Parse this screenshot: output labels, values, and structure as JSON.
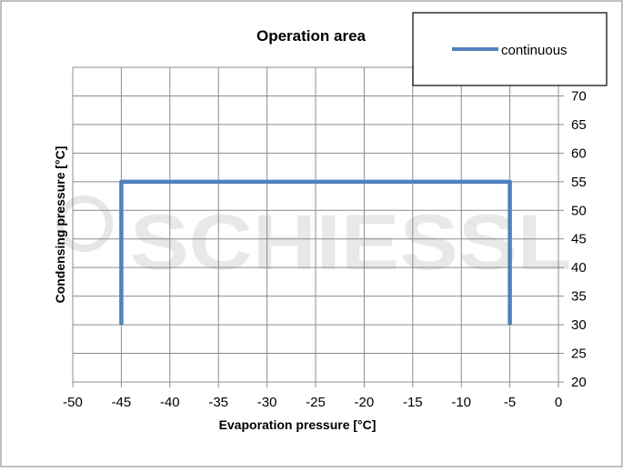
{
  "chart_data": {
    "type": "line",
    "title": "Operation area",
    "xlabel": "Evaporation pressure [°C]",
    "ylabel": "Condensing pressure [°C]",
    "xlim": [
      -50,
      0
    ],
    "ylim": [
      20,
      75
    ],
    "x_ticks": [
      -50,
      -45,
      -40,
      -35,
      -30,
      -25,
      -20,
      -15,
      -10,
      -5,
      0
    ],
    "x_tick_labels": [
      "-50",
      "-45",
      "-40",
      "-35",
      "-30",
      "-25",
      "-20",
      "-15",
      "-10",
      "-5",
      "0"
    ],
    "y_ticks": [
      20,
      25,
      30,
      35,
      40,
      45,
      50,
      55,
      60,
      65,
      70
    ],
    "y_tick_labels": [
      "20",
      "25",
      "30",
      "35",
      "40",
      "45",
      "50",
      "55",
      "60",
      "65",
      "70"
    ],
    "y_axis_side": "right",
    "grid": true,
    "legend_position": "top-right",
    "series": [
      {
        "name": "continuous",
        "color": "#4f81bd",
        "x": [
          -45,
          -45,
          -5,
          -5
        ],
        "y": [
          30,
          55,
          55,
          30
        ]
      }
    ],
    "watermark": "SCHIESSL"
  }
}
